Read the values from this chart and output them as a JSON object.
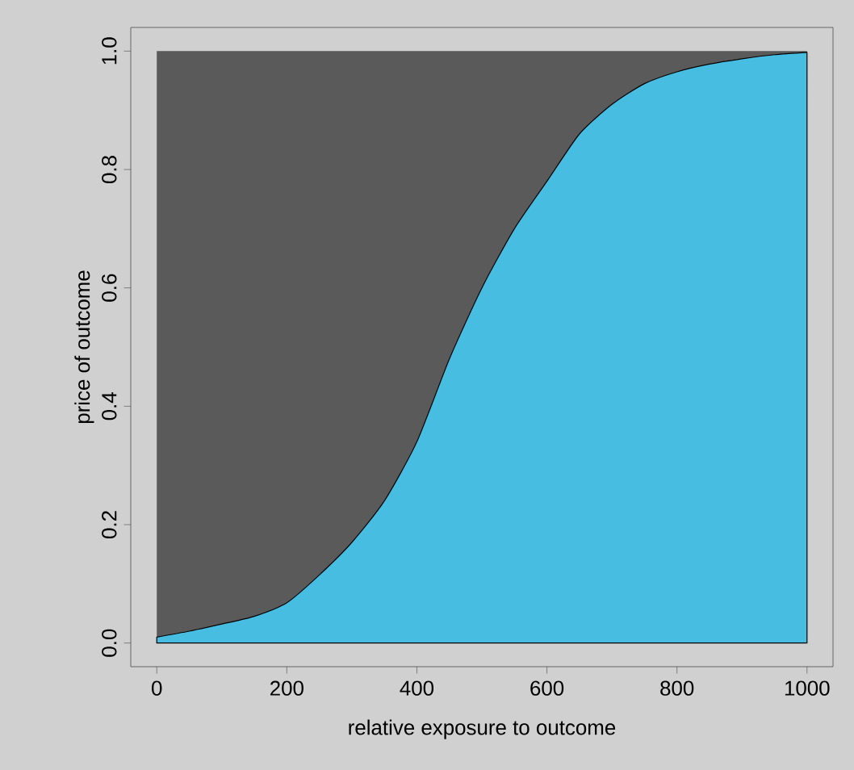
{
  "chart_data": {
    "type": "area",
    "stacked": true,
    "xlabel": "relative exposure to outcome",
    "ylabel": "price of outcome",
    "x": [
      0,
      50,
      100,
      150,
      200,
      250,
      300,
      350,
      400,
      450,
      500,
      550,
      600,
      650,
      700,
      750,
      800,
      850,
      900,
      950,
      1000
    ],
    "series": [
      {
        "color": "#48bde2",
        "values": [
          0.01,
          0.02,
          0.032,
          0.045,
          0.068,
          0.115,
          0.17,
          0.24,
          0.34,
          0.48,
          0.6,
          0.7,
          0.78,
          0.86,
          0.91,
          0.945,
          0.965,
          0.978,
          0.987,
          0.994,
          0.998
        ]
      },
      {
        "color": "#5a5a5a",
        "values": [
          0.99,
          0.98,
          0.968,
          0.955,
          0.932,
          0.885,
          0.83,
          0.76,
          0.66,
          0.52,
          0.4,
          0.3,
          0.22,
          0.14,
          0.09,
          0.055,
          0.035,
          0.022,
          0.013,
          0.006,
          0.002
        ]
      }
    ],
    "xlim": [
      -40,
      1040
    ],
    "ylim": [
      -0.04,
      1.04
    ],
    "xticks": [
      0,
      200,
      400,
      600,
      800,
      1000
    ],
    "yticks": [
      {
        "value": 0,
        "label": "0.0"
      },
      0.2,
      0.4,
      0.6,
      0.8,
      {
        "value": 1,
        "label": "1.0"
      }
    ]
  }
}
